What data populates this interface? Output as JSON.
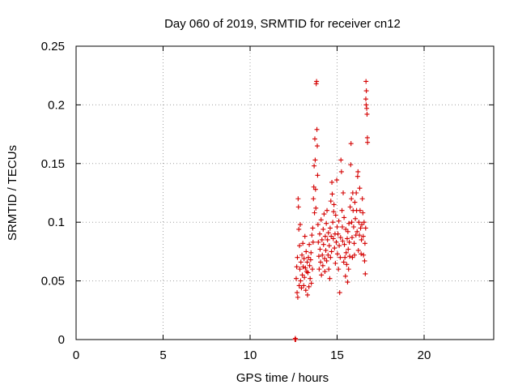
{
  "chart_data": {
    "type": "scatter",
    "title": "Day 060 of 2019, SRMTID for receiver cn12",
    "xlabel": "GPS time / hours",
    "ylabel": "SRMTID / TECUs",
    "xlim": [
      0,
      24
    ],
    "ylim": [
      0,
      0.25
    ],
    "xticks": [
      0,
      5,
      10,
      15,
      20
    ],
    "xtick_labels": [
      "0",
      "5",
      "10",
      "15",
      "20"
    ],
    "yticks": [
      0,
      0.05,
      0.1,
      0.15,
      0.2,
      0.25
    ],
    "ytick_labels": [
      "0",
      "0.05",
      "0.1",
      "0.15",
      "0.2",
      "0.25"
    ],
    "grid": true,
    "marker": "+",
    "color": "#d40000",
    "series": [
      {
        "name": "SRMTID",
        "points": [
          [
            12.58,
            0.0
          ],
          [
            12.62,
            0.0
          ],
          [
            12.6,
            0.001
          ],
          [
            12.65,
            0.052
          ],
          [
            12.68,
            0.062
          ],
          [
            12.7,
            0.04
          ],
          [
            12.72,
            0.07
          ],
          [
            12.74,
            0.036
          ],
          [
            12.76,
            0.12
          ],
          [
            12.78,
            0.113
          ],
          [
            12.8,
            0.094
          ],
          [
            12.82,
            0.046
          ],
          [
            12.84,
            0.08
          ],
          [
            12.86,
            0.06
          ],
          [
            12.88,
            0.098
          ],
          [
            12.9,
            0.05
          ],
          [
            12.92,
            0.066
          ],
          [
            12.95,
            0.044
          ],
          [
            12.98,
            0.072
          ],
          [
            13.0,
            0.055
          ],
          [
            13.03,
            0.082
          ],
          [
            13.05,
            0.062
          ],
          [
            13.08,
            0.046
          ],
          [
            13.1,
            0.069
          ],
          [
            13.12,
            0.053
          ],
          [
            13.15,
            0.088
          ],
          [
            13.18,
            0.061
          ],
          [
            13.2,
            0.042
          ],
          [
            13.22,
            0.075
          ],
          [
            13.25,
            0.058
          ],
          [
            13.28,
            0.066
          ],
          [
            13.3,
            0.038
          ],
          [
            13.32,
            0.057
          ],
          [
            13.35,
            0.07
          ],
          [
            13.38,
            0.045
          ],
          [
            13.4,
            0.081
          ],
          [
            13.42,
            0.063
          ],
          [
            13.45,
            0.052
          ],
          [
            13.48,
            0.068
          ],
          [
            13.5,
            0.074
          ],
          [
            13.52,
            0.048
          ],
          [
            13.55,
            0.089
          ],
          [
            13.58,
            0.06
          ],
          [
            13.6,
            0.095
          ],
          [
            13.62,
            0.083
          ],
          [
            13.64,
            0.12
          ],
          [
            13.66,
            0.13
          ],
          [
            13.68,
            0.148
          ],
          [
            13.7,
            0.108
          ],
          [
            13.72,
            0.171
          ],
          [
            13.74,
            0.153
          ],
          [
            13.76,
            0.128
          ],
          [
            13.78,
            0.112
          ],
          [
            13.8,
            0.218
          ],
          [
            13.82,
            0.22
          ],
          [
            13.84,
            0.179
          ],
          [
            13.86,
            0.165
          ],
          [
            13.88,
            0.14
          ],
          [
            13.9,
            0.098
          ],
          [
            13.92,
            0.083
          ],
          [
            13.95,
            0.071
          ],
          [
            13.97,
            0.06
          ],
          [
            14.0,
            0.09
          ],
          [
            14.02,
            0.077
          ],
          [
            14.05,
            0.066
          ],
          [
            14.08,
            0.102
          ],
          [
            14.1,
            0.055
          ],
          [
            14.13,
            0.085
          ],
          [
            14.15,
            0.072
          ],
          [
            14.18,
            0.063
          ],
          [
            14.2,
            0.094
          ],
          [
            14.22,
            0.081
          ],
          [
            14.25,
            0.107
          ],
          [
            14.28,
            0.069
          ],
          [
            14.3,
            0.058
          ],
          [
            14.32,
            0.088
          ],
          [
            14.35,
            0.076
          ],
          [
            14.38,
            0.099
          ],
          [
            14.4,
            0.067
          ],
          [
            14.42,
            0.11
          ],
          [
            14.45,
            0.085
          ],
          [
            14.48,
            0.072
          ],
          [
            14.5,
            0.091
          ],
          [
            14.52,
            0.06
          ],
          [
            14.55,
            0.08
          ],
          [
            14.58,
            0.052
          ],
          [
            14.6,
            0.095
          ],
          [
            14.62,
            0.07
          ],
          [
            14.64,
            0.118
          ],
          [
            14.66,
            0.088
          ],
          [
            14.68,
            0.075
          ],
          [
            14.7,
            0.134
          ],
          [
            14.72,
            0.124
          ],
          [
            14.75,
            0.1
          ],
          [
            14.78,
            0.086
          ],
          [
            14.8,
            0.109
          ],
          [
            14.82,
            0.115
          ],
          [
            14.85,
            0.078
          ],
          [
            14.88,
            0.09
          ],
          [
            14.9,
            0.065
          ],
          [
            14.92,
            0.106
          ],
          [
            14.95,
            0.083
          ],
          [
            14.98,
            0.136
          ],
          [
            15.0,
            0.096
          ],
          [
            15.02,
            0.073
          ],
          [
            15.05,
            0.09
          ],
          [
            15.08,
            0.06
          ],
          [
            15.1,
            0.101
          ],
          [
            15.12,
            0.08
          ],
          [
            15.15,
            0.04
          ],
          [
            15.18,
            0.07
          ],
          [
            15.2,
            0.087
          ],
          [
            15.22,
            0.153
          ],
          [
            15.25,
            0.143
          ],
          [
            15.28,
            0.11
          ],
          [
            15.3,
            0.096
          ],
          [
            15.32,
            0.084
          ],
          [
            15.35,
            0.125
          ],
          [
            15.38,
            0.066
          ],
          [
            15.4,
            0.104
          ],
          [
            15.42,
            0.081
          ],
          [
            15.45,
            0.07
          ],
          [
            15.48,
            0.054
          ],
          [
            15.5,
            0.094
          ],
          [
            15.52,
            0.074
          ],
          [
            15.55,
            0.064
          ],
          [
            15.58,
            0.086
          ],
          [
            15.6,
            0.049
          ],
          [
            15.62,
            0.092
          ],
          [
            15.64,
            0.077
          ],
          [
            15.66,
            0.06
          ],
          [
            15.68,
            0.099
          ],
          [
            15.7,
            0.083
          ],
          [
            15.72,
            0.071
          ],
          [
            15.75,
            0.113
          ],
          [
            15.78,
            0.149
          ],
          [
            15.8,
            0.167
          ],
          [
            15.82,
            0.12
          ],
          [
            15.84,
            0.1
          ],
          [
            15.86,
            0.087
          ],
          [
            15.88,
            0.07
          ],
          [
            15.9,
            0.125
          ],
          [
            15.92,
            0.11
          ],
          [
            15.95,
            0.096
          ],
          [
            15.98,
            0.082
          ],
          [
            16.0,
            0.072
          ],
          [
            16.02,
            0.117
          ],
          [
            16.05,
            0.103
          ],
          [
            16.08,
            0.089
          ],
          [
            16.1,
            0.125
          ],
          [
            16.12,
            0.11
          ],
          [
            16.15,
            0.092
          ],
          [
            16.18,
            0.139
          ],
          [
            16.2,
            0.143
          ],
          [
            16.22,
            0.076
          ],
          [
            16.25,
            0.1
          ],
          [
            16.28,
            0.089
          ],
          [
            16.3,
            0.129
          ],
          [
            16.32,
            0.11
          ],
          [
            16.35,
            0.095
          ],
          [
            16.38,
            0.073
          ],
          [
            16.4,
            0.085
          ],
          [
            16.42,
            0.098
          ],
          [
            16.45,
            0.12
          ],
          [
            16.48,
            0.108
          ],
          [
            16.5,
            0.088
          ],
          [
            16.52,
            0.072
          ],
          [
            16.55,
            0.1
          ],
          [
            16.58,
            0.067
          ],
          [
            16.6,
            0.082
          ],
          [
            16.62,
            0.056
          ],
          [
            16.64,
            0.095
          ],
          [
            16.65,
            0.205
          ],
          [
            16.66,
            0.22
          ],
          [
            16.67,
            0.2
          ],
          [
            16.68,
            0.212
          ],
          [
            16.7,
            0.197
          ],
          [
            16.72,
            0.192
          ],
          [
            16.74,
            0.172
          ],
          [
            16.75,
            0.168
          ]
        ]
      }
    ]
  }
}
